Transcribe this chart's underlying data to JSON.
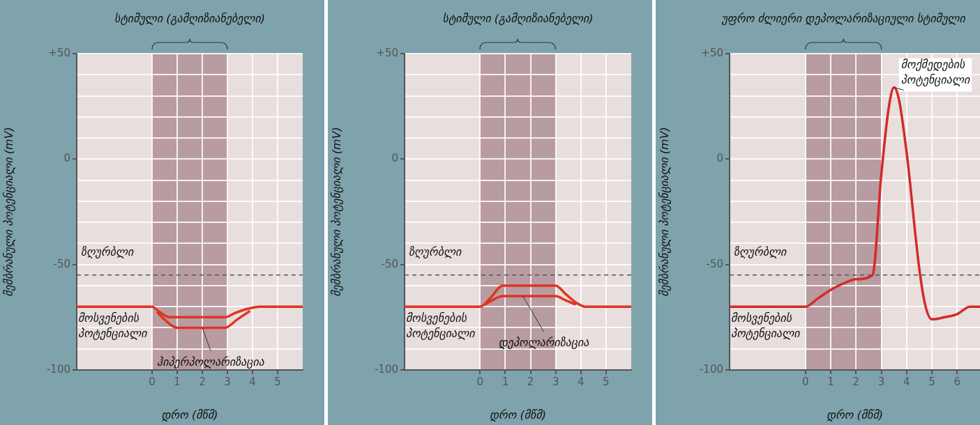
{
  "chart_data": [
    {
      "type": "line",
      "xlabel": "დრო (მწმ)",
      "ylabel": "მემბრანული პოტენციალი (mV)",
      "xlim": [
        -3,
        6
      ],
      "ylim": [
        -100,
        50
      ],
      "xticks": [
        0,
        1,
        2,
        3,
        4,
        5
      ],
      "yticks": [
        -100,
        {
          "value": -90,
          "label": null
        },
        {
          "value": -80,
          "label": null
        },
        {
          "value": -70,
          "label": null
        },
        {
          "value": -60,
          "label": null
        },
        -50,
        {
          "value": -40,
          "label": null
        },
        {
          "value": -30,
          "label": null
        },
        {
          "value": -20,
          "label": null
        },
        {
          "value": -10,
          "label": null
        },
        0,
        {
          "value": 10,
          "label": null
        },
        {
          "value": 20,
          "label": null
        },
        {
          "value": 30,
          "label": null
        },
        {
          "value": 40,
          "label": null
        },
        {
          "value": 50,
          "label": "+50"
        }
      ],
      "grid": true,
      "series": [
        {
          "color": "#e0341f",
          "x": [
            -3,
            0,
            0.3,
            0.7,
            2.9,
            3.3,
            3.8,
            4.3,
            6
          ],
          "values": [
            -70,
            -70,
            -72.5,
            -75,
            -75,
            -73,
            -71,
            -70,
            -70
          ]
        },
        {
          "color": "#e0341f",
          "x": [
            0.2,
            0.4,
            1,
            2.9,
            3.4,
            3.9
          ],
          "values": [
            -72.5,
            -75,
            -80,
            -80,
            -76,
            -72
          ]
        }
      ],
      "ref_lines": [
        {
          "axis": "y",
          "value": -55,
          "label": "ზღურბლი",
          "color": "#555555",
          "line_style": "dashed"
        }
      ],
      "bands": [
        {
          "axis": "x",
          "from": 0,
          "to": 3,
          "color": "#b89ca1"
        }
      ],
      "title": "სტიმული (გამღიზიანებელი)",
      "annotations": [
        {
          "text": "მოსვენების პოტენციალი",
          "x": -3,
          "y": -70
        },
        {
          "text": "ჰიპერპოლარიზაცია",
          "x": 2,
          "y": -80
        }
      ]
    },
    {
      "type": "line",
      "xlabel": "დრო (მწმ)",
      "ylabel": "მემბრანული პოტენციალი (mV)",
      "xlim": [
        -3,
        6
      ],
      "ylim": [
        -100,
        50
      ],
      "xticks": [
        0,
        1,
        2,
        3,
        4,
        5
      ],
      "yticks": [
        -100,
        {
          "value": -90,
          "label": null
        },
        {
          "value": -80,
          "label": null
        },
        {
          "value": -70,
          "label": null
        },
        {
          "value": -60,
          "label": null
        },
        -50,
        {
          "value": -40,
          "label": null
        },
        {
          "value": -30,
          "label": null
        },
        {
          "value": -20,
          "label": null
        },
        {
          "value": -10,
          "label": null
        },
        0,
        {
          "value": 10,
          "label": null
        },
        {
          "value": 20,
          "label": null
        },
        {
          "value": 30,
          "label": null
        },
        {
          "value": 40,
          "label": null
        },
        {
          "value": 50,
          "label": "+50"
        }
      ],
      "grid": true,
      "series": [
        {
          "color": "#e0341f",
          "x": [
            -3,
            0,
            0.4,
            0.9,
            3,
            3.4,
            3.8,
            4.2,
            6
          ],
          "values": [
            -70,
            -70,
            -66,
            -60,
            -60,
            -64,
            -68,
            -70,
            -70
          ]
        },
        {
          "color": "#e0341f",
          "x": [
            0.2,
            0.4,
            0.9,
            3,
            3.4,
            3.8
          ],
          "values": [
            -69,
            -67.5,
            -65,
            -65,
            -67,
            -69
          ]
        }
      ],
      "ref_lines": [
        {
          "axis": "y",
          "value": -55,
          "label": "ზღურბლი",
          "color": "#555555",
          "line_style": "dashed"
        }
      ],
      "bands": [
        {
          "axis": "x",
          "from": 0,
          "to": 3,
          "color": "#b89ca1"
        }
      ],
      "title": "სტიმული (გამღიზიანებელი)",
      "annotations": [
        {
          "text": "მოსვენების პოტენციალი",
          "x": -3,
          "y": -70
        },
        {
          "text": "დეპოლარიზაცია",
          "x": 1.7,
          "y": -65
        }
      ]
    },
    {
      "type": "line",
      "xlabel": "დრო (მწმ)",
      "ylabel": "მემბრანული პოტენციალი (mV)",
      "xlim": [
        -3,
        6.9
      ],
      "ylim": [
        -100,
        50
      ],
      "xticks": [
        0,
        1,
        2,
        3,
        4,
        5,
        6
      ],
      "yticks": [
        -100,
        {
          "value": -90,
          "label": null
        },
        {
          "value": -80,
          "label": null
        },
        {
          "value": -70,
          "label": null
        },
        {
          "value": -60,
          "label": null
        },
        -50,
        {
          "value": -40,
          "label": null
        },
        {
          "value": -30,
          "label": null
        },
        {
          "value": -20,
          "label": null
        },
        {
          "value": -10,
          "label": null
        },
        0,
        {
          "value": 10,
          "label": null
        },
        {
          "value": 20,
          "label": null
        },
        {
          "value": 30,
          "label": null
        },
        {
          "value": 40,
          "label": null
        },
        {
          "value": 50,
          "label": "+50"
        }
      ],
      "grid": true,
      "series": [
        {
          "color": "#d42a2a",
          "x": [
            -3,
            0,
            0.5,
            1,
            1.5,
            2,
            2.65,
            3,
            3.3,
            3.5,
            3.7,
            4,
            4.5,
            4.75,
            5,
            5.5,
            6,
            6.5,
            6.9
          ],
          "values": [
            -70,
            -70,
            -66,
            -62,
            -59,
            -57,
            -55,
            -7,
            25,
            34,
            28,
            3,
            -52,
            -70,
            -76,
            -75,
            -73.5,
            -70,
            -70
          ]
        }
      ],
      "ref_lines": [
        {
          "axis": "y",
          "value": -55,
          "label": "ზღურბლი",
          "color": "#555555",
          "line_style": "dashed"
        }
      ],
      "bands": [
        {
          "axis": "x",
          "from": 0,
          "to": 3,
          "color": "#b89ca1"
        }
      ],
      "title": "უფრო ძლიერი დეპოლარიზაციული სტიმული",
      "annotations": [
        {
          "text": "მოსვენების პოტენციალი",
          "x": -3,
          "y": -70
        },
        {
          "text": "მოქმედების პოტენციალი",
          "x": 3.5,
          "y": 34
        }
      ]
    }
  ]
}
